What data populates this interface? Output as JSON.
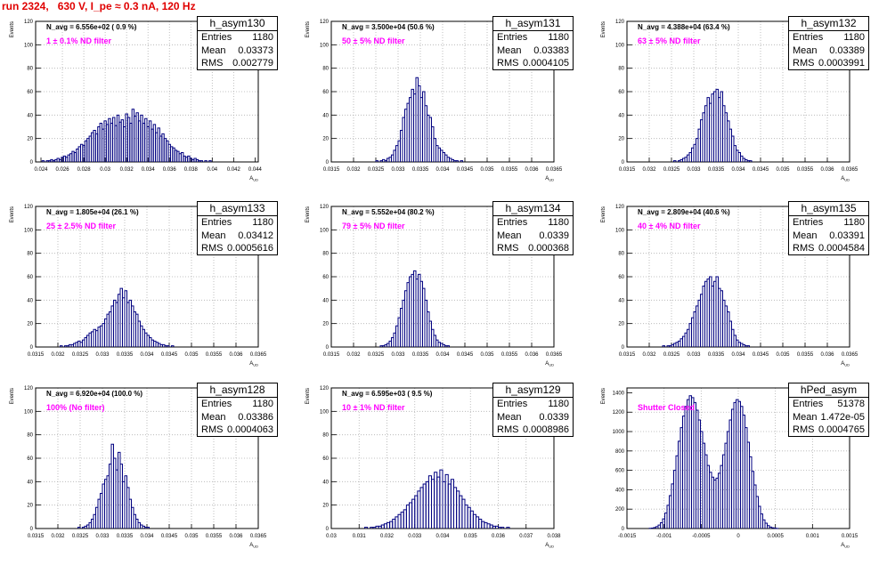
{
  "header": {
    "run_title": "run 2324,   630 V, I_pe ≈ 0.3 nA, 120 Hz"
  },
  "colors": {
    "histogram": "#000080",
    "annotation": "#ff00ff",
    "title": "#e00000",
    "grid": "#b0b0b0"
  },
  "chart_data": [
    {
      "type": "bar",
      "name": "h_asym130",
      "navg": "N_avg = 6.556e+02 ( 0.9 %)",
      "filter": "1 ± 0.1% ND filter",
      "stats": {
        "Entries": "1180",
        "Mean": "0.03373",
        "RMS": "0.002779"
      },
      "xlabel": "A_UD",
      "ylabel": "Events",
      "xlim": [
        0.0235,
        0.0443
      ],
      "ylim": [
        0,
        120
      ],
      "xticks": [
        "0.024",
        "0.026",
        "0.028",
        "0.03",
        "0.032",
        "0.034",
        "0.036",
        "0.038",
        "0.04",
        "0.042",
        "0.044"
      ],
      "yticks": [
        "0",
        "20",
        "40",
        "60",
        "80",
        "100",
        "120"
      ],
      "x0": 0.0235,
      "bin_width": 0.0002,
      "values": [
        0,
        0,
        0,
        1,
        0,
        1,
        1,
        2,
        1,
        2,
        3,
        2,
        4,
        5,
        4,
        6,
        7,
        9,
        8,
        11,
        13,
        15,
        14,
        18,
        20,
        22,
        25,
        27,
        24,
        30,
        33,
        28,
        35,
        32,
        37,
        33,
        38,
        31,
        40,
        34,
        36,
        30,
        41,
        38,
        33,
        45,
        39,
        42,
        35,
        40,
        33,
        37,
        30,
        35,
        28,
        32,
        25,
        29,
        22,
        24,
        20,
        18,
        15,
        13,
        12,
        10,
        9,
        7,
        8,
        5,
        4,
        5,
        3,
        2,
        3,
        2,
        1,
        1,
        0,
        1,
        0,
        1,
        0,
        0,
        0,
        0,
        0,
        0,
        0,
        0,
        0,
        0,
        0,
        0,
        0,
        0,
        0,
        0,
        0,
        0,
        0,
        0,
        0,
        0
      ]
    },
    {
      "type": "bar",
      "name": "h_asym131",
      "navg": "N_avg = 3.500e+04 (50.6 %)",
      "filter": "50 ± 5% ND filter",
      "stats": {
        "Entries": "1180",
        "Mean": "0.03383",
        "RMS": "0.0004105"
      },
      "xlabel": "A_UD",
      "ylabel": "Events",
      "xlim": [
        0.0315,
        0.0365
      ],
      "ylim": [
        0,
        120
      ],
      "xticks": [
        "0.0315",
        "0.032",
        "0.0325",
        "0.033",
        "0.0335",
        "0.034",
        "0.0345",
        "0.035",
        "0.0355",
        "0.036",
        "0.0365"
      ],
      "yticks": [
        "0",
        "20",
        "40",
        "60",
        "80",
        "100",
        "120"
      ],
      "x0": 0.0315,
      "bin_width": 5e-05,
      "values": [
        0,
        0,
        0,
        0,
        0,
        0,
        0,
        0,
        0,
        0,
        0,
        0,
        0,
        0,
        0,
        0,
        0,
        0,
        0,
        0,
        1,
        0,
        1,
        2,
        1,
        3,
        4,
        6,
        10,
        14,
        18,
        27,
        38,
        45,
        50,
        55,
        62,
        58,
        72,
        65,
        55,
        60,
        48,
        40,
        38,
        30,
        20,
        14,
        12,
        10,
        8,
        6,
        4,
        3,
        2,
        1,
        1,
        0,
        1,
        0,
        0,
        0,
        0,
        0,
        0,
        0,
        0,
        0,
        0,
        0,
        0,
        0,
        0,
        0,
        0,
        0,
        0,
        0,
        0,
        0,
        0,
        0,
        0,
        0,
        0,
        0,
        0,
        0,
        0,
        0,
        0,
        0,
        0,
        0,
        0,
        0,
        0,
        0,
        0,
        0
      ]
    },
    {
      "type": "bar",
      "name": "h_asym132",
      "navg": "N_avg = 4.388e+04 (63.4 %)",
      "filter": "63 ± 5% ND filter",
      "stats": {
        "Entries": "1180",
        "Mean": "0.03389",
        "RMS": "0.0003991"
      },
      "xlabel": "A_UD",
      "ylabel": "Events",
      "xlim": [
        0.0315,
        0.0365
      ],
      "ylim": [
        0,
        120
      ],
      "xticks": [
        "0.0315",
        "0.032",
        "0.0325",
        "0.033",
        "0.0335",
        "0.034",
        "0.0345",
        "0.035",
        "0.0355",
        "0.036",
        "0.0365"
      ],
      "yticks": [
        "0",
        "20",
        "40",
        "60",
        "80",
        "100",
        "120"
      ],
      "x0": 0.0315,
      "bin_width": 5e-05,
      "values": [
        0,
        0,
        0,
        0,
        0,
        0,
        0,
        0,
        0,
        0,
        0,
        0,
        0,
        0,
        0,
        0,
        0,
        0,
        0,
        0,
        0,
        1,
        0,
        1,
        2,
        3,
        4,
        6,
        8,
        12,
        15,
        20,
        28,
        36,
        42,
        48,
        55,
        50,
        58,
        60,
        62,
        55,
        60,
        48,
        42,
        35,
        28,
        22,
        14,
        10,
        8,
        5,
        3,
        2,
        1,
        1,
        0,
        0,
        0,
        0,
        0,
        0,
        0,
        0,
        0,
        0,
        0,
        0,
        0,
        0,
        0,
        0,
        0,
        0,
        0,
        0,
        0,
        0,
        0,
        0,
        0,
        0,
        0,
        0,
        0,
        0,
        0,
        0,
        0,
        0,
        0,
        0,
        0,
        0,
        0,
        0,
        0,
        0,
        0,
        0
      ]
    },
    {
      "type": "bar",
      "name": "h_asym133",
      "navg": "N_avg = 1.805e+04 (26.1 %)",
      "filter": "25 ± 2.5% ND filter",
      "stats": {
        "Entries": "1180",
        "Mean": "0.03412",
        "RMS": "0.0005616"
      },
      "xlabel": "A_UD",
      "ylabel": "Events",
      "xlim": [
        0.0315,
        0.0365
      ],
      "ylim": [
        0,
        120
      ],
      "xticks": [
        "0.0315",
        "0.032",
        "0.0325",
        "0.033",
        "0.0335",
        "0.034",
        "0.0345",
        "0.035",
        "0.0355",
        "0.036",
        "0.0365"
      ],
      "yticks": [
        "0",
        "20",
        "40",
        "60",
        "80",
        "100",
        "120"
      ],
      "x0": 0.0315,
      "bin_width": 5e-05,
      "values": [
        0,
        0,
        0,
        0,
        0,
        0,
        0,
        0,
        0,
        0,
        0,
        1,
        0,
        1,
        1,
        2,
        2,
        3,
        4,
        5,
        4,
        6,
        8,
        10,
        12,
        13,
        15,
        14,
        17,
        18,
        20,
        24,
        28,
        30,
        35,
        40,
        38,
        45,
        50,
        42,
        48,
        38,
        40,
        35,
        30,
        28,
        22,
        18,
        15,
        12,
        10,
        8,
        6,
        5,
        4,
        3,
        2,
        2,
        1,
        1,
        0,
        1,
        0,
        0,
        0,
        0,
        0,
        0,
        0,
        0,
        0,
        0,
        0,
        0,
        0,
        0,
        0,
        0,
        0,
        0,
        0,
        0,
        0,
        0,
        0,
        0,
        0,
        0,
        0,
        0,
        0,
        0,
        0,
        0,
        0,
        0,
        0,
        0,
        0,
        0
      ]
    },
    {
      "type": "bar",
      "name": "h_asym134",
      "navg": "N_avg = 5.552e+04 (80.2 %)",
      "filter": "79 ± 5% ND filter",
      "stats": {
        "Entries": "1180",
        "Mean": "0.0339",
        "RMS": "0.000368"
      },
      "xlabel": "A_UD",
      "ylabel": "Events",
      "xlim": [
        0.0315,
        0.0365
      ],
      "ylim": [
        0,
        120
      ],
      "xticks": [
        "0.0315",
        "0.032",
        "0.0325",
        "0.033",
        "0.0335",
        "0.034",
        "0.0345",
        "0.035",
        "0.0355",
        "0.036",
        "0.0365"
      ],
      "yticks": [
        "0",
        "20",
        "40",
        "60",
        "80",
        "100",
        "120"
      ],
      "x0": 0.0315,
      "bin_width": 5e-05,
      "values": [
        0,
        0,
        0,
        0,
        0,
        0,
        0,
        0,
        0,
        0,
        0,
        0,
        0,
        0,
        0,
        0,
        0,
        0,
        0,
        0,
        0,
        0,
        1,
        1,
        2,
        3,
        5,
        8,
        12,
        18,
        25,
        33,
        40,
        48,
        55,
        60,
        62,
        65,
        58,
        62,
        56,
        50,
        40,
        30,
        22,
        15,
        10,
        6,
        4,
        3,
        2,
        1,
        1,
        0,
        0,
        0,
        0,
        0,
        0,
        0,
        0,
        0,
        0,
        0,
        0,
        0,
        0,
        0,
        0,
        0,
        0,
        0,
        0,
        0,
        0,
        0,
        0,
        0,
        0,
        0,
        0,
        0,
        0,
        0,
        0,
        0,
        0,
        0,
        0,
        0,
        0,
        0,
        0,
        0,
        0,
        0,
        0,
        0,
        0,
        0
      ]
    },
    {
      "type": "bar",
      "name": "h_asym135",
      "navg": "N_avg = 2.809e+04 (40.6 %)",
      "filter": "40 ± 4% ND filter",
      "stats": {
        "Entries": "1180",
        "Mean": "0.03391",
        "RMS": "0.0004584"
      },
      "xlabel": "A_UD",
      "ylabel": "Events",
      "xlim": [
        0.0315,
        0.0365
      ],
      "ylim": [
        0,
        120
      ],
      "xticks": [
        "0.0315",
        "0.032",
        "0.0325",
        "0.033",
        "0.0335",
        "0.034",
        "0.0345",
        "0.035",
        "0.0355",
        "0.036",
        "0.0365"
      ],
      "yticks": [
        "0",
        "20",
        "40",
        "60",
        "80",
        "100",
        "120"
      ],
      "x0": 0.0315,
      "bin_width": 5e-05,
      "values": [
        0,
        0,
        0,
        0,
        0,
        0,
        0,
        0,
        0,
        0,
        0,
        0,
        0,
        0,
        0,
        0,
        1,
        0,
        1,
        1,
        2,
        3,
        4,
        5,
        7,
        9,
        12,
        15,
        20,
        25,
        30,
        35,
        40,
        45,
        52,
        56,
        58,
        60,
        52,
        56,
        60,
        50,
        48,
        40,
        35,
        30,
        22,
        15,
        10,
        6,
        4,
        3,
        2,
        1,
        1,
        0,
        0,
        0,
        0,
        0,
        0,
        0,
        0,
        0,
        0,
        0,
        0,
        0,
        0,
        0,
        0,
        0,
        0,
        0,
        0,
        0,
        0,
        0,
        0,
        0,
        0,
        0,
        0,
        0,
        0,
        0,
        0,
        0,
        0,
        0,
        0,
        0,
        0,
        0,
        0,
        0,
        0,
        0,
        0,
        0
      ]
    },
    {
      "type": "bar",
      "name": "h_asym128",
      "navg": "N_avg = 6.920e+04 (100.0 %)",
      "filter": "100% (No filter)",
      "stats": {
        "Entries": "1180",
        "Mean": "0.03386",
        "RMS": "0.0004063"
      },
      "xlabel": "A_UD",
      "ylabel": "Events",
      "xlim": [
        0.0315,
        0.0365
      ],
      "ylim": [
        0,
        120
      ],
      "xticks": [
        "0.0315",
        "0.032",
        "0.0325",
        "0.033",
        "0.0335",
        "0.034",
        "0.0345",
        "0.035",
        "0.0355",
        "0.036",
        "0.0365"
      ],
      "yticks": [
        "0",
        "20",
        "40",
        "60",
        "80",
        "100",
        "120"
      ],
      "x0": 0.0315,
      "bin_width": 5e-05,
      "values": [
        0,
        0,
        0,
        0,
        0,
        0,
        0,
        0,
        0,
        0,
        0,
        0,
        0,
        0,
        0,
        0,
        0,
        0,
        0,
        1,
        0,
        1,
        2,
        3,
        5,
        8,
        12,
        18,
        25,
        30,
        38,
        42,
        45,
        55,
        72,
        60,
        50,
        65,
        55,
        40,
        45,
        35,
        25,
        18,
        12,
        8,
        5,
        3,
        2,
        1,
        1,
        0,
        0,
        0,
        0,
        0,
        0,
        0,
        0,
        0,
        0,
        0,
        0,
        0,
        0,
        0,
        0,
        0,
        0,
        0,
        0,
        0,
        0,
        0,
        0,
        0,
        0,
        0,
        0,
        0,
        0,
        0,
        0,
        0,
        0,
        0,
        0,
        0,
        0,
        0,
        0,
        0,
        0,
        0,
        0,
        0,
        0,
        0,
        0,
        0
      ]
    },
    {
      "type": "bar",
      "name": "h_asym129",
      "navg": "N_avg = 6.595e+03 ( 9.5 %)",
      "filter": "10 ± 1% ND filter",
      "stats": {
        "Entries": "1180",
        "Mean": "0.0339",
        "RMS": "0.0008986"
      },
      "xlabel": "A_UD",
      "ylabel": "Events",
      "xlim": [
        0.03,
        0.038
      ],
      "ylim": [
        0,
        120
      ],
      "xticks": [
        "0.03",
        "0.031",
        "0.032",
        "0.033",
        "0.034",
        "0.035",
        "0.036",
        "0.037",
        "0.038"
      ],
      "yticks": [
        "0",
        "20",
        "40",
        "60",
        "80",
        "100",
        "120"
      ],
      "x0": 0.03,
      "bin_width": 0.0001,
      "values": [
        0,
        0,
        0,
        0,
        0,
        0,
        0,
        0,
        0,
        0,
        0,
        0,
        1,
        0,
        1,
        1,
        2,
        2,
        3,
        4,
        5,
        6,
        8,
        10,
        12,
        14,
        16,
        20,
        22,
        25,
        28,
        32,
        35,
        38,
        40,
        45,
        42,
        48,
        44,
        50,
        40,
        46,
        38,
        42,
        35,
        32,
        28,
        25,
        20,
        18,
        15,
        12,
        10,
        8,
        6,
        5,
        4,
        3,
        2,
        2,
        1,
        1,
        0,
        1,
        0,
        0,
        0,
        0,
        0,
        0,
        0,
        0,
        0,
        0,
        0,
        0,
        0,
        0,
        0,
        0
      ]
    },
    {
      "type": "bar",
      "name": "hPed_asym",
      "navg": "",
      "filter": "Shutter Closed",
      "stats": {
        "Entries": "51378",
        "Mean": "1.472e-05",
        "RMS": "0.0004765"
      },
      "xlabel": "A_UD",
      "ylabel": "Events",
      "xlim": [
        -0.0015,
        0.0015
      ],
      "ylim": [
        0,
        1450
      ],
      "xticks": [
        "-0.0015",
        "-0.001",
        "-0.0005",
        "0",
        "0.0005",
        "0.001",
        "0.0015"
      ],
      "yticks": [
        "0",
        "200",
        "400",
        "600",
        "800",
        "1000",
        "1200",
        "1400"
      ],
      "x0": -0.0015,
      "bin_width": 3e-05,
      "values": [
        0,
        0,
        0,
        0,
        0,
        0,
        0,
        0,
        0,
        0,
        2,
        5,
        10,
        20,
        35,
        60,
        100,
        160,
        240,
        340,
        460,
        600,
        750,
        900,
        1040,
        1160,
        1260,
        1330,
        1370,
        1350,
        1300,
        1220,
        1120,
        1000,
        880,
        760,
        650,
        580,
        530,
        500,
        520,
        570,
        650,
        760,
        880,
        1000,
        1120,
        1230,
        1300,
        1330,
        1310,
        1260,
        1170,
        1040,
        890,
        740,
        590,
        450,
        330,
        230,
        150,
        90,
        55,
        30,
        15,
        8,
        3,
        1,
        0,
        0,
        0,
        0,
        0,
        0,
        0,
        0,
        0,
        0,
        0,
        0,
        0,
        0,
        0,
        0,
        0,
        0,
        0,
        0,
        0,
        0,
        0,
        0,
        0,
        0,
        0,
        0,
        0,
        0,
        0,
        0
      ]
    }
  ]
}
